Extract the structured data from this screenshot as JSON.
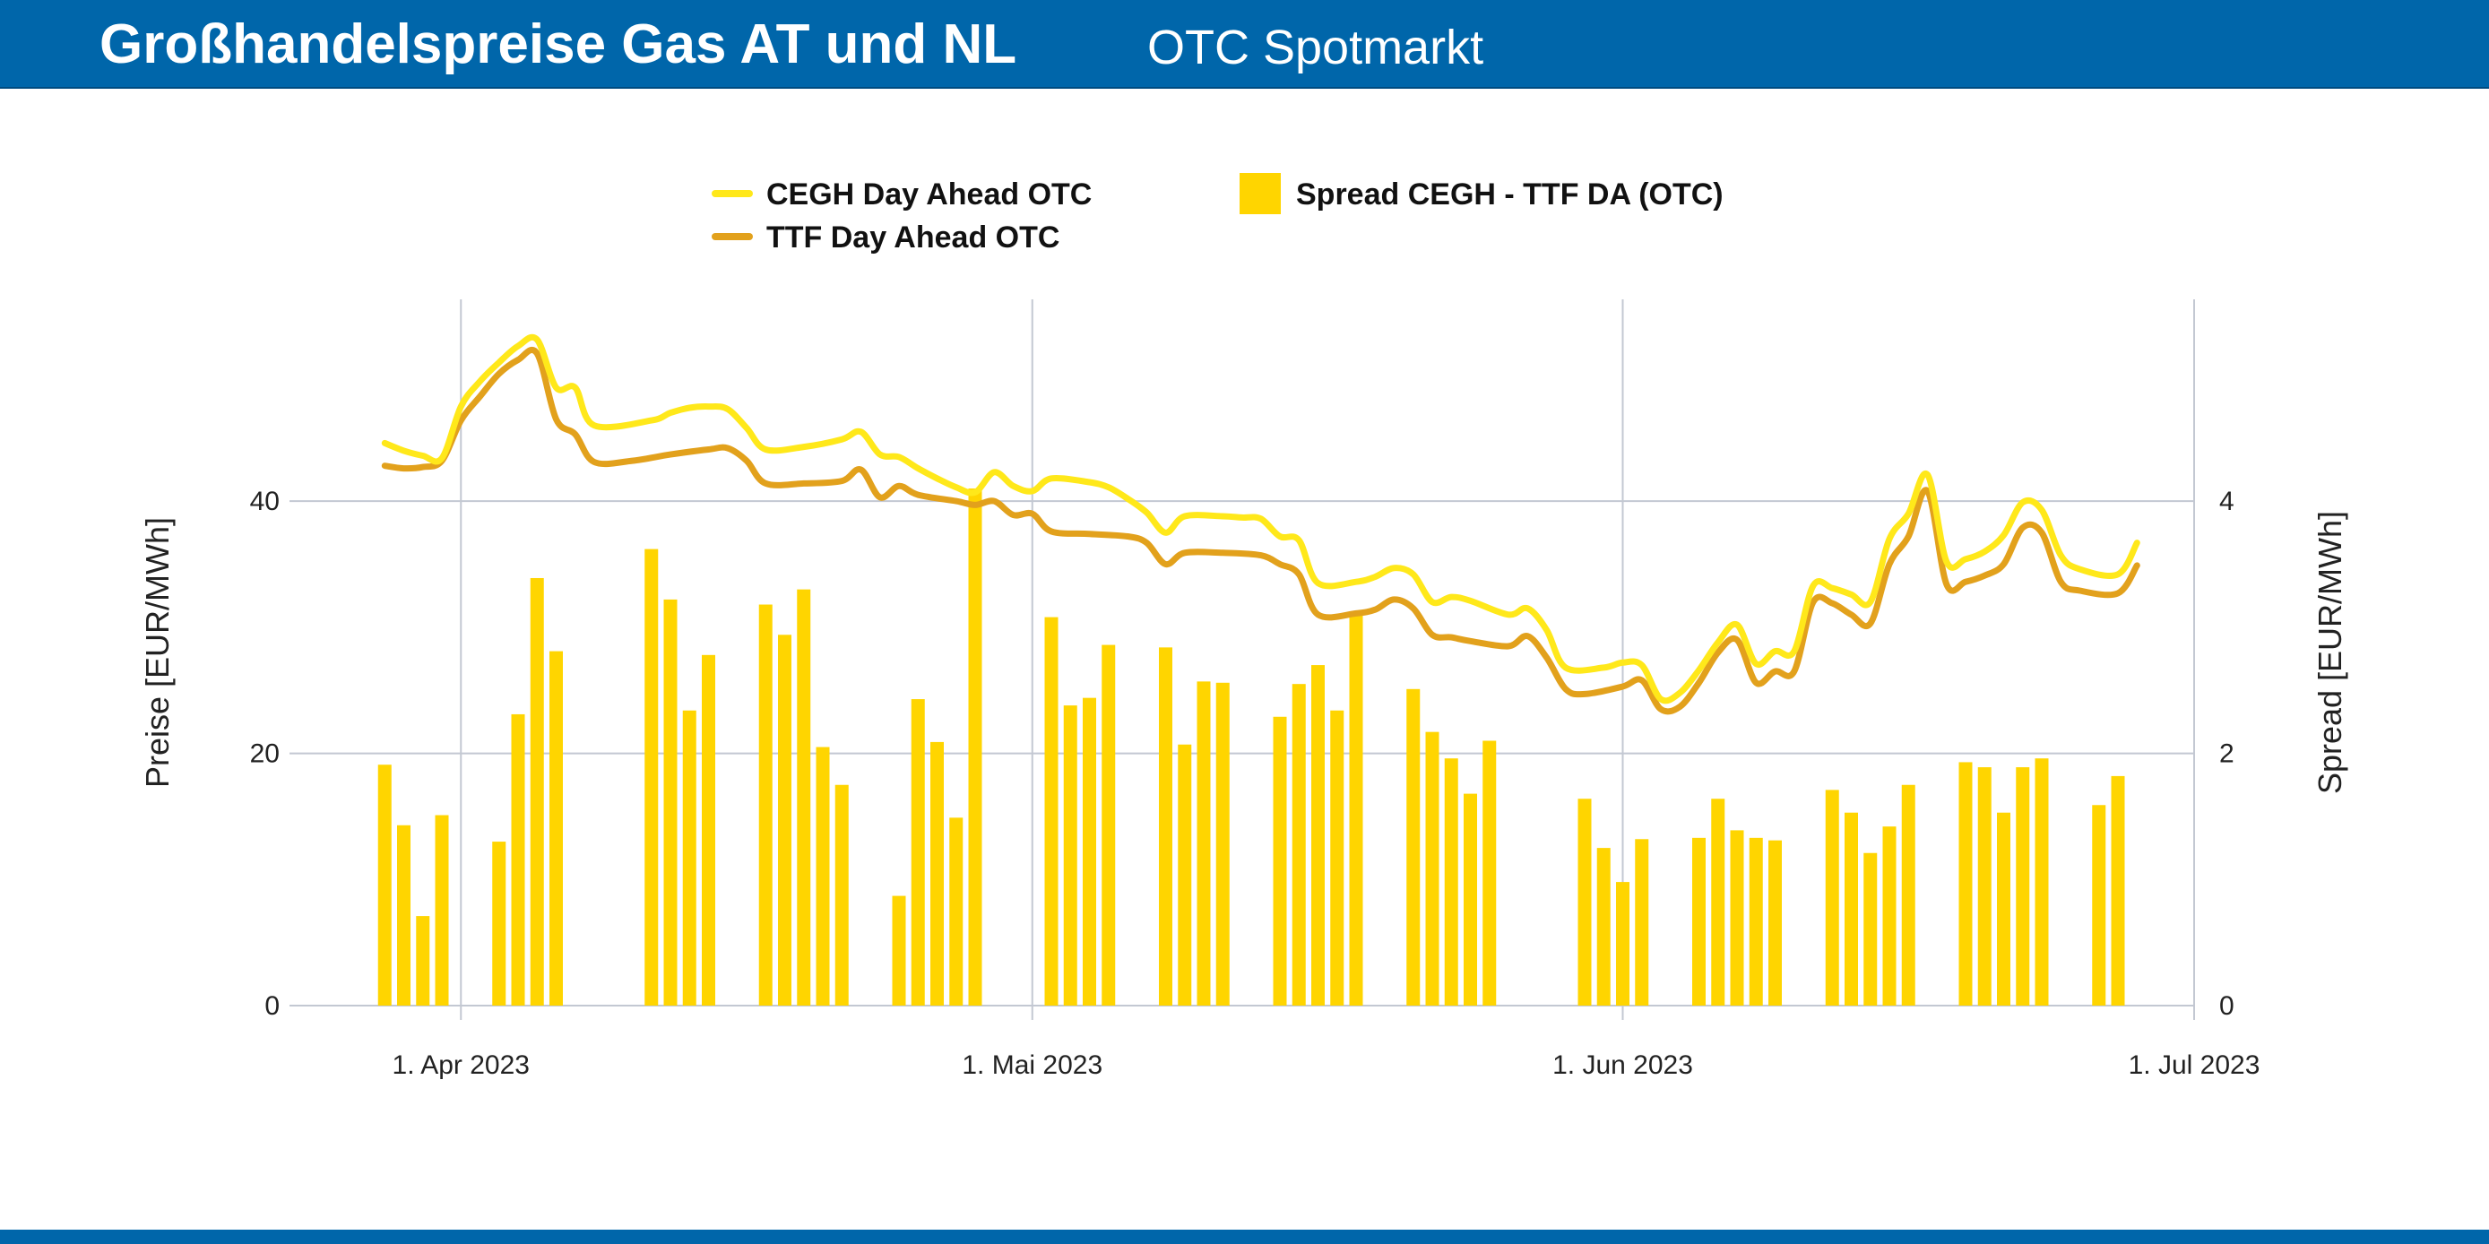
{
  "header": {
    "title": "Großhandelspreise Gas AT und NL",
    "subtitle": "OTC Spotmarkt",
    "background": "#0066aa"
  },
  "chart_data": {
    "type": "line",
    "date_range": [
      "2023-03-29",
      "2023-06-28"
    ],
    "legend": [
      {
        "label": "CEGH Day Ahead OTC",
        "color": "#ffe81a",
        "kind": "line"
      },
      {
        "label": "TTF Day Ahead OTC",
        "color": "#e2a11c",
        "kind": "line"
      },
      {
        "label": "Spread CEGH - TTF DA (OTC)",
        "color": "#ffd500",
        "kind": "bar"
      }
    ],
    "legend_position": "top-center",
    "x_ticks": [
      {
        "date": "2023-04-01",
        "label": "1. Apr 2023"
      },
      {
        "date": "2023-05-01",
        "label": "1. Mai 2023"
      },
      {
        "date": "2023-06-01",
        "label": "1. Jun 2023"
      },
      {
        "date": "2023-07-01",
        "label": "1. Jul 2023"
      }
    ],
    "x_range": [
      "2023-03-23",
      "2023-07-01"
    ],
    "y_left": {
      "label": "Preise [EUR/MWh]",
      "min": 0,
      "max": 56,
      "ticks": [
        0,
        20,
        40
      ]
    },
    "y_right": {
      "label": "Spread [EUR/MWh]",
      "min": 0,
      "max": 5.6,
      "ticks": [
        0,
        2,
        4
      ]
    },
    "grid": true,
    "series": [
      {
        "name": "CEGH Day Ahead OTC",
        "axis": "left",
        "color": "#ffe81a",
        "points": [
          [
            "2023-03-28",
            44.6
          ],
          [
            "2023-03-29",
            44.0
          ],
          [
            "2023-03-30",
            43.6
          ],
          [
            "2023-03-31",
            43.4
          ],
          [
            "2023-04-01",
            47.5
          ],
          [
            "2023-04-02",
            49.5
          ],
          [
            "2023-04-03",
            51.0
          ],
          [
            "2023-04-04",
            52.3
          ],
          [
            "2023-04-05",
            52.8
          ],
          [
            "2023-04-06",
            49.0
          ],
          [
            "2023-04-07",
            49.0
          ],
          [
            "2023-04-08",
            46.0
          ],
          [
            "2023-04-11",
            46.4
          ],
          [
            "2023-04-12",
            47.0
          ],
          [
            "2023-04-13",
            47.4
          ],
          [
            "2023-04-14",
            47.5
          ],
          [
            "2023-04-15",
            47.3
          ],
          [
            "2023-04-16",
            45.8
          ],
          [
            "2023-04-17",
            44.1
          ],
          [
            "2023-04-19",
            44.3
          ],
          [
            "2023-04-21",
            44.9
          ],
          [
            "2023-04-22",
            45.5
          ],
          [
            "2023-04-23",
            43.7
          ],
          [
            "2023-04-24",
            43.5
          ],
          [
            "2023-04-25",
            42.6
          ],
          [
            "2023-04-26",
            41.8
          ],
          [
            "2023-04-27",
            41.1
          ],
          [
            "2023-04-28",
            40.7
          ],
          [
            "2023-04-29",
            42.3
          ],
          [
            "2023-04-30",
            41.2
          ],
          [
            "2023-05-01",
            40.8
          ],
          [
            "2023-05-02",
            41.8
          ],
          [
            "2023-05-04",
            41.5
          ],
          [
            "2023-05-05",
            41.1
          ],
          [
            "2023-05-06",
            40.2
          ],
          [
            "2023-05-07",
            39.1
          ],
          [
            "2023-05-08",
            37.5
          ],
          [
            "2023-05-09",
            38.8
          ],
          [
            "2023-05-11",
            38.8
          ],
          [
            "2023-05-12",
            38.7
          ],
          [
            "2023-05-13",
            38.6
          ],
          [
            "2023-05-14",
            37.2
          ],
          [
            "2023-05-15",
            36.9
          ],
          [
            "2023-05-16",
            33.5
          ],
          [
            "2023-05-18",
            33.6
          ],
          [
            "2023-05-19",
            34.0
          ],
          [
            "2023-05-20",
            34.7
          ],
          [
            "2023-05-21",
            34.2
          ],
          [
            "2023-05-22",
            32.0
          ],
          [
            "2023-05-23",
            32.4
          ],
          [
            "2023-05-24",
            32.1
          ],
          [
            "2023-05-26",
            31.0
          ],
          [
            "2023-05-27",
            31.5
          ],
          [
            "2023-05-28",
            29.8
          ],
          [
            "2023-05-29",
            26.8
          ],
          [
            "2023-05-31",
            26.8
          ],
          [
            "2023-06-01",
            27.2
          ],
          [
            "2023-06-02",
            27.0
          ],
          [
            "2023-06-03",
            24.3
          ],
          [
            "2023-06-04",
            24.8
          ],
          [
            "2023-06-05",
            26.6
          ],
          [
            "2023-06-06",
            28.8
          ],
          [
            "2023-06-07",
            30.2
          ],
          [
            "2023-06-08",
            27.1
          ],
          [
            "2023-06-09",
            28.1
          ],
          [
            "2023-06-10",
            28.1
          ],
          [
            "2023-06-11",
            33.3
          ],
          [
            "2023-06-12",
            33.1
          ],
          [
            "2023-06-13",
            32.6
          ],
          [
            "2023-06-14",
            32.0
          ],
          [
            "2023-06-15",
            37.0
          ],
          [
            "2023-06-16",
            39.0
          ],
          [
            "2023-06-17",
            42.1
          ],
          [
            "2023-06-18",
            35.2
          ],
          [
            "2023-06-19",
            35.4
          ],
          [
            "2023-06-20",
            36.0
          ],
          [
            "2023-06-21",
            37.3
          ],
          [
            "2023-06-22",
            39.9
          ],
          [
            "2023-06-23",
            39.3
          ],
          [
            "2023-06-24",
            35.7
          ],
          [
            "2023-06-25",
            34.6
          ],
          [
            "2023-06-27",
            34.2
          ],
          [
            "2023-06-28",
            36.7
          ]
        ]
      },
      {
        "name": "TTF Day Ahead OTC",
        "axis": "left",
        "color": "#e2a11c",
        "points": [
          [
            "2023-03-28",
            42.8
          ],
          [
            "2023-03-29",
            42.6
          ],
          [
            "2023-03-30",
            42.7
          ],
          [
            "2023-03-31",
            43.2
          ],
          [
            "2023-04-01",
            46.4
          ],
          [
            "2023-04-02",
            48.3
          ],
          [
            "2023-04-03",
            50.1
          ],
          [
            "2023-04-04",
            51.2
          ],
          [
            "2023-04-05",
            51.7
          ],
          [
            "2023-04-06",
            46.5
          ],
          [
            "2023-04-07",
            45.3
          ],
          [
            "2023-04-08",
            43.1
          ],
          [
            "2023-04-10",
            43.2
          ],
          [
            "2023-04-12",
            43.7
          ],
          [
            "2023-04-14",
            44.1
          ],
          [
            "2023-04-15",
            44.2
          ],
          [
            "2023-04-16",
            43.2
          ],
          [
            "2023-04-17",
            41.4
          ],
          [
            "2023-04-19",
            41.4
          ],
          [
            "2023-04-21",
            41.6
          ],
          [
            "2023-04-22",
            42.5
          ],
          [
            "2023-04-23",
            40.3
          ],
          [
            "2023-04-24",
            41.2
          ],
          [
            "2023-04-25",
            40.5
          ],
          [
            "2023-04-27",
            40.0
          ],
          [
            "2023-04-28",
            39.7
          ],
          [
            "2023-04-29",
            40.0
          ],
          [
            "2023-04-30",
            38.9
          ],
          [
            "2023-05-01",
            39.0
          ],
          [
            "2023-05-02",
            37.6
          ],
          [
            "2023-05-04",
            37.4
          ],
          [
            "2023-05-06",
            37.2
          ],
          [
            "2023-05-07",
            36.7
          ],
          [
            "2023-05-08",
            35.0
          ],
          [
            "2023-05-09",
            35.9
          ],
          [
            "2023-05-11",
            35.9
          ],
          [
            "2023-05-13",
            35.7
          ],
          [
            "2023-05-14",
            35.0
          ],
          [
            "2023-05-15",
            34.2
          ],
          [
            "2023-05-16",
            31.0
          ],
          [
            "2023-05-18",
            31.1
          ],
          [
            "2023-05-19",
            31.4
          ],
          [
            "2023-05-20",
            32.2
          ],
          [
            "2023-05-21",
            31.5
          ],
          [
            "2023-05-22",
            29.4
          ],
          [
            "2023-05-23",
            29.2
          ],
          [
            "2023-05-24",
            28.9
          ],
          [
            "2023-05-26",
            28.5
          ],
          [
            "2023-05-27",
            29.3
          ],
          [
            "2023-05-28",
            27.6
          ],
          [
            "2023-05-29",
            25.1
          ],
          [
            "2023-05-30",
            24.7
          ],
          [
            "2023-06-01",
            25.3
          ],
          [
            "2023-06-02",
            25.8
          ],
          [
            "2023-06-03",
            23.5
          ],
          [
            "2023-06-04",
            23.7
          ],
          [
            "2023-06-05",
            25.6
          ],
          [
            "2023-06-06",
            28.0
          ],
          [
            "2023-06-07",
            29.0
          ],
          [
            "2023-06-08",
            25.6
          ],
          [
            "2023-06-09",
            26.5
          ],
          [
            "2023-06-10",
            26.5
          ],
          [
            "2023-06-11",
            32.0
          ],
          [
            "2023-06-12",
            31.9
          ],
          [
            "2023-06-13",
            31.0
          ],
          [
            "2023-06-14",
            30.3
          ],
          [
            "2023-06-15",
            35.0
          ],
          [
            "2023-06-16",
            37.2
          ],
          [
            "2023-06-17",
            40.8
          ],
          [
            "2023-06-18",
            33.4
          ],
          [
            "2023-06-19",
            33.6
          ],
          [
            "2023-06-20",
            34.1
          ],
          [
            "2023-06-21",
            35.0
          ],
          [
            "2023-06-22",
            37.9
          ],
          [
            "2023-06-23",
            37.5
          ],
          [
            "2023-06-24",
            33.6
          ],
          [
            "2023-06-25",
            32.9
          ],
          [
            "2023-06-27",
            32.7
          ],
          [
            "2023-06-28",
            34.9
          ]
        ]
      }
    ],
    "bars": {
      "name": "Spread CEGH - TTF DA (OTC)",
      "axis": "right",
      "color": "#ffd500",
      "points": [
        [
          "2023-03-28",
          1.91
        ],
        [
          "2023-03-29",
          1.43
        ],
        [
          "2023-03-30",
          0.71
        ],
        [
          "2023-03-31",
          1.51
        ],
        [
          "2023-04-03",
          1.3
        ],
        [
          "2023-04-04",
          2.31
        ],
        [
          "2023-04-05",
          3.39
        ],
        [
          "2023-04-06",
          2.81
        ],
        [
          "2023-04-11",
          3.62
        ],
        [
          "2023-04-12",
          3.22
        ],
        [
          "2023-04-13",
          2.34
        ],
        [
          "2023-04-14",
          2.78
        ],
        [
          "2023-04-17",
          3.18
        ],
        [
          "2023-04-18",
          2.94
        ],
        [
          "2023-04-19",
          3.3
        ],
        [
          "2023-04-20",
          2.05
        ],
        [
          "2023-04-21",
          1.75
        ],
        [
          "2023-04-24",
          0.87
        ],
        [
          "2023-04-25",
          2.43
        ],
        [
          "2023-04-26",
          2.09
        ],
        [
          "2023-04-27",
          1.49
        ],
        [
          "2023-04-28",
          4.1
        ],
        [
          "2023-05-02",
          3.08
        ],
        [
          "2023-05-03",
          2.38
        ],
        [
          "2023-05-04",
          2.44
        ],
        [
          "2023-05-05",
          2.86
        ],
        [
          "2023-05-08",
          2.84
        ],
        [
          "2023-05-09",
          2.07
        ],
        [
          "2023-05-10",
          2.57
        ],
        [
          "2023-05-11",
          2.56
        ],
        [
          "2023-05-14",
          2.29
        ],
        [
          "2023-05-15",
          2.55
        ],
        [
          "2023-05-16",
          2.7
        ],
        [
          "2023-05-17",
          2.34
        ],
        [
          "2023-05-18",
          3.11
        ],
        [
          "2023-05-21",
          2.51
        ],
        [
          "2023-05-22",
          2.17
        ],
        [
          "2023-05-23",
          1.96
        ],
        [
          "2023-05-24",
          1.68
        ],
        [
          "2023-05-25",
          2.1
        ],
        [
          "2023-05-30",
          1.64
        ],
        [
          "2023-05-31",
          1.25
        ],
        [
          "2023-06-01",
          0.98
        ],
        [
          "2023-06-02",
          1.32
        ],
        [
          "2023-06-05",
          1.33
        ],
        [
          "2023-06-06",
          1.64
        ],
        [
          "2023-06-07",
          1.39
        ],
        [
          "2023-06-08",
          1.33
        ],
        [
          "2023-06-09",
          1.31
        ],
        [
          "2023-06-12",
          1.71
        ],
        [
          "2023-06-13",
          1.53
        ],
        [
          "2023-06-14",
          1.21
        ],
        [
          "2023-06-15",
          1.42
        ],
        [
          "2023-06-16",
          1.75
        ],
        [
          "2023-06-19",
          1.93
        ],
        [
          "2023-06-20",
          1.89
        ],
        [
          "2023-06-21",
          1.53
        ],
        [
          "2023-06-22",
          1.89
        ],
        [
          "2023-06-23",
          1.96
        ],
        [
          "2023-06-26",
          1.59
        ],
        [
          "2023-06-27",
          1.82
        ]
      ]
    }
  }
}
